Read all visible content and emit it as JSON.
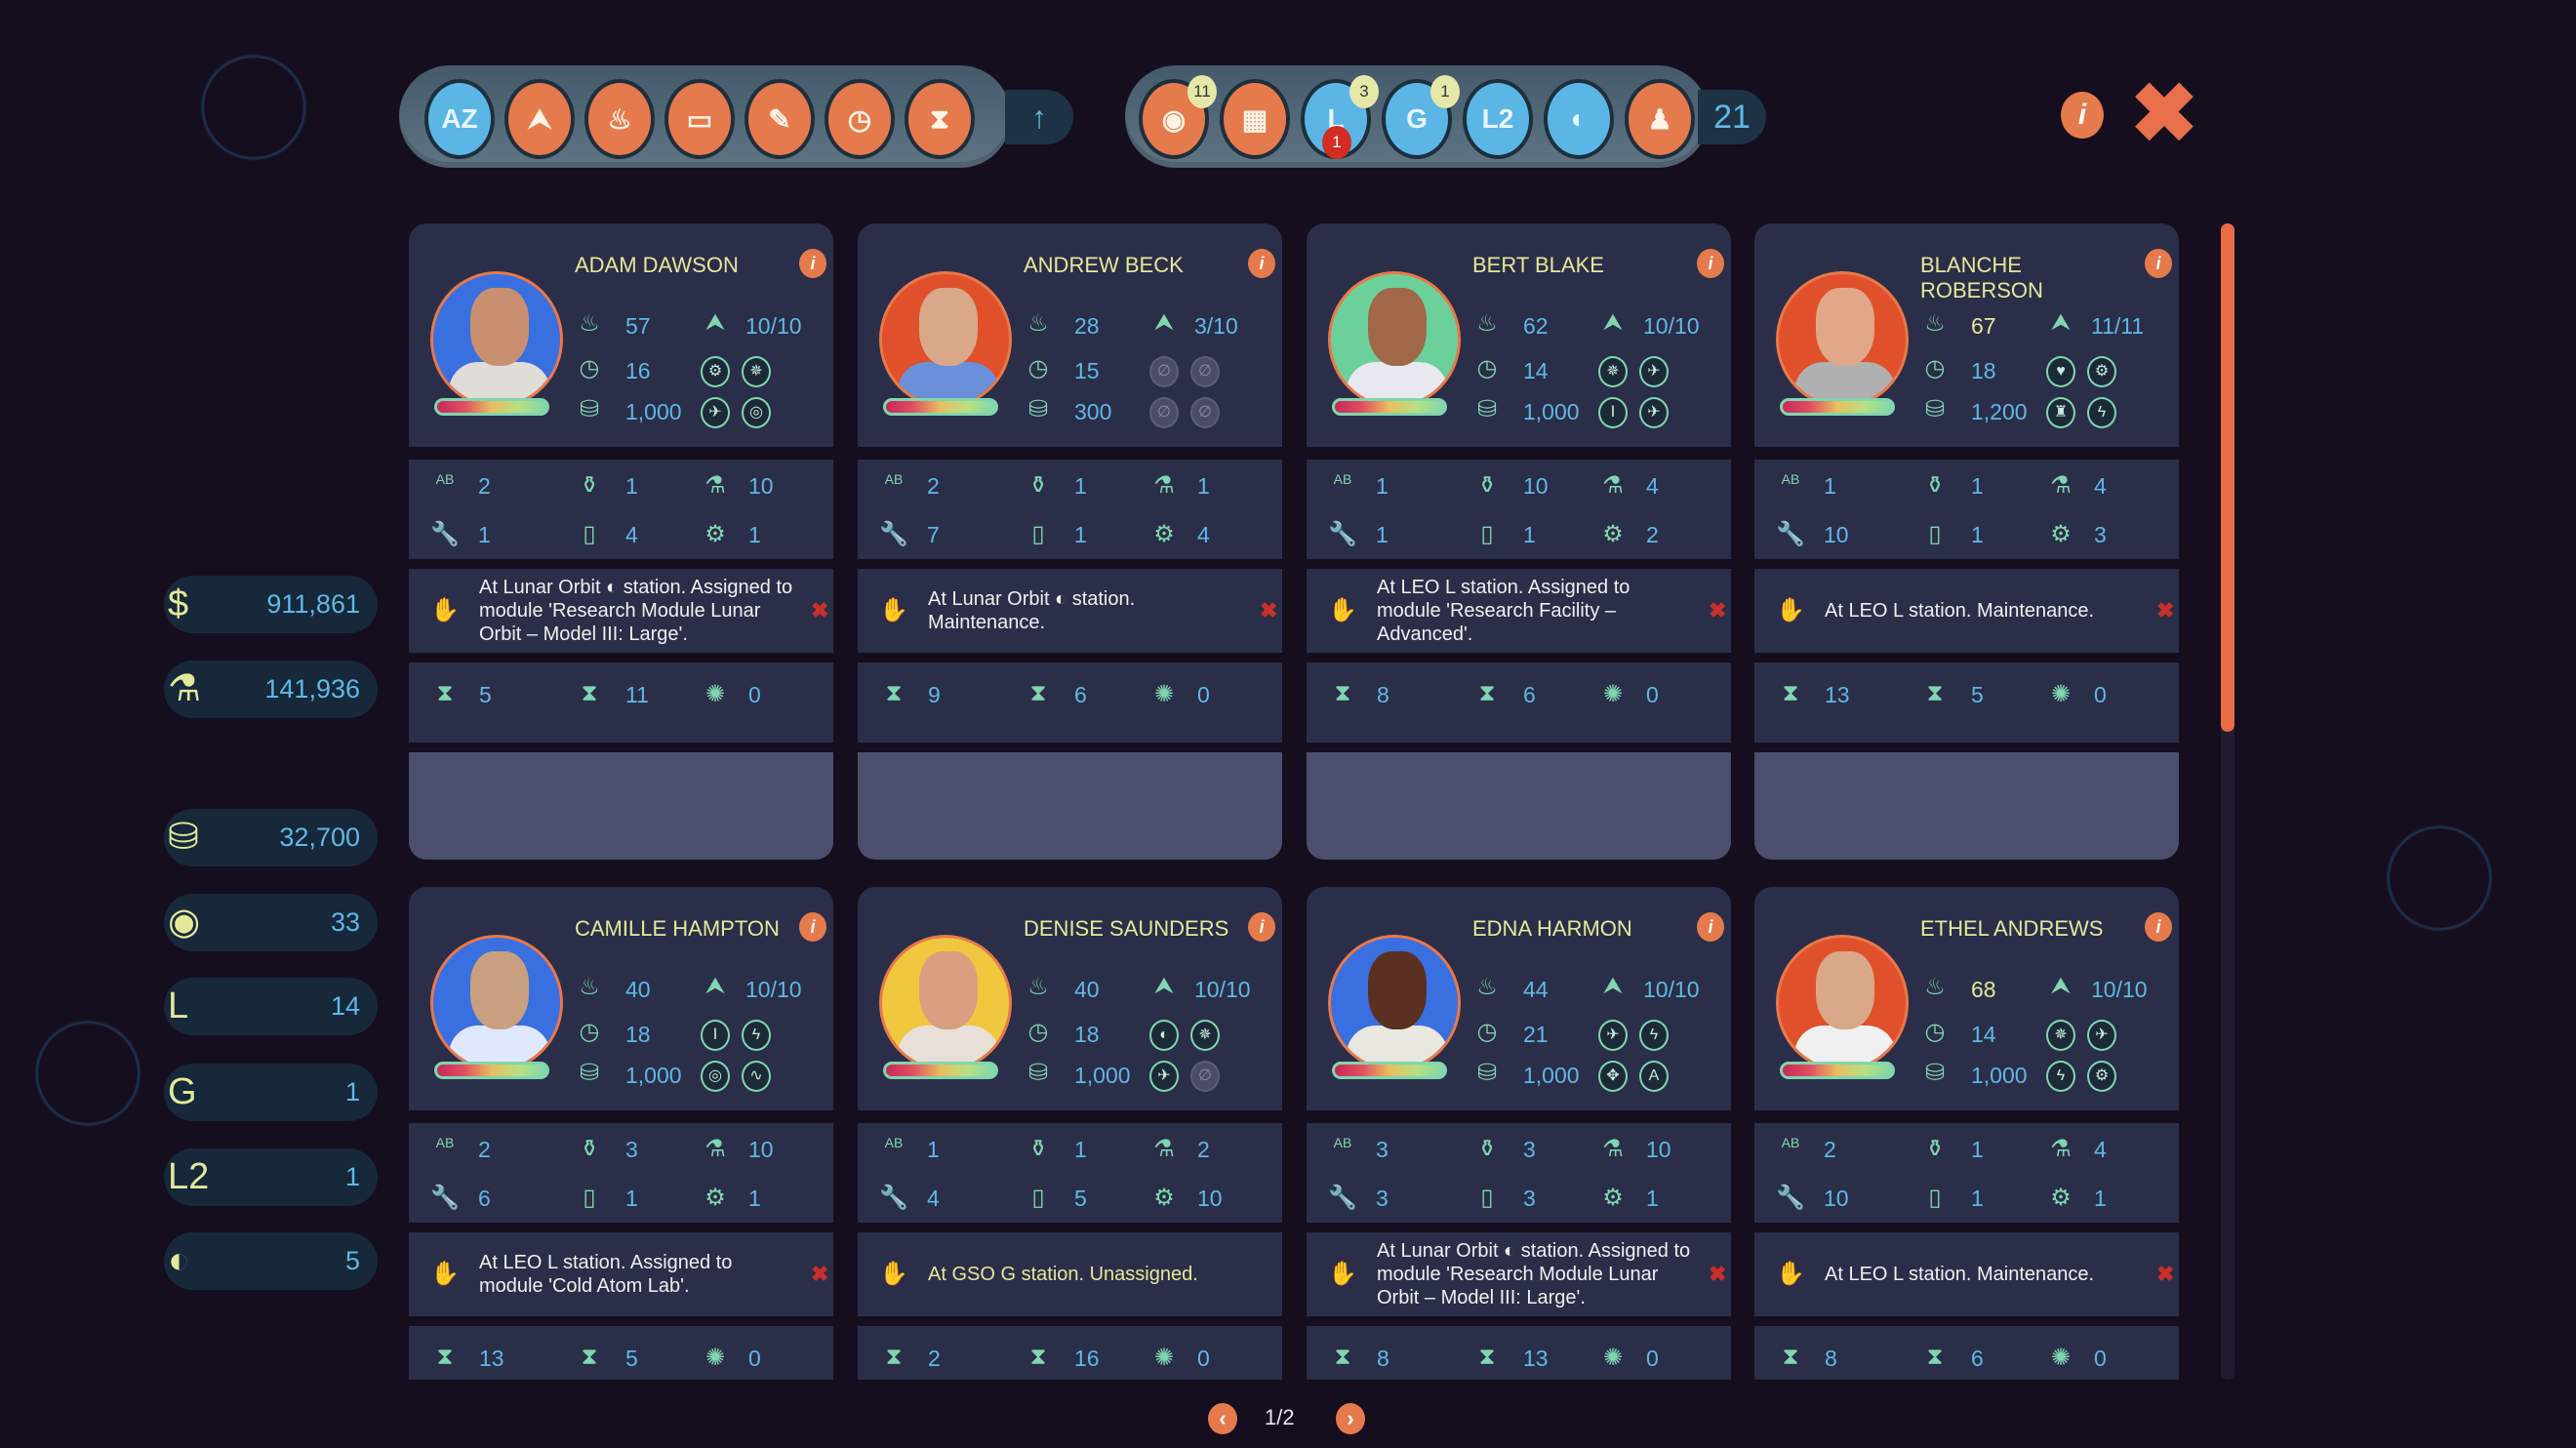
{
  "toolbar": {
    "sort_buttons": [
      {
        "icon": "az-sort-icon",
        "glyph": "AZ",
        "active": true
      },
      {
        "icon": "rank-icon",
        "glyph": "⮝"
      },
      {
        "icon": "age-cake-icon",
        "glyph": "♨"
      },
      {
        "icon": "health-bar-icon",
        "glyph": "▭"
      },
      {
        "icon": "syringe-icon",
        "glyph": "✎"
      },
      {
        "icon": "clock-heart-icon",
        "glyph": "◷"
      },
      {
        "icon": "hourglass-icon",
        "glyph": "⧗"
      }
    ],
    "sort_direction_icon": "arrow-up-icon",
    "filter_buttons": [
      {
        "icon": "earth-astronaut-icon",
        "glyph": "◉",
        "count": "11",
        "color": "orange"
      },
      {
        "icon": "facility-astronaut-icon",
        "glyph": "▦",
        "color": "orange"
      },
      {
        "icon": "leo-station-icon",
        "glyph": "L",
        "count": "3",
        "alert": "1",
        "color": "blue"
      },
      {
        "icon": "gso-station-icon",
        "glyph": "G",
        "count": "1",
        "color": "blue"
      },
      {
        "icon": "l2-station-icon",
        "glyph": "L2",
        "color": "blue"
      },
      {
        "icon": "lunar-station-icon",
        "glyph": "◐",
        "color": "blue"
      },
      {
        "icon": "astronaut-silhouette-icon",
        "glyph": "♟",
        "color": "orange"
      }
    ],
    "total": "21"
  },
  "sidebar": [
    {
      "icon": "dollar-icon",
      "glyph": "$",
      "value": "911,861"
    },
    {
      "icon": "microscope-icon",
      "glyph": "⚗",
      "value": "141,936"
    },
    {
      "icon": "salary-coins-icon",
      "glyph": "⛁",
      "value": "32,700"
    },
    {
      "icon": "earth-astronaut-icon",
      "glyph": "◉",
      "value": "33"
    },
    {
      "icon": "leo-astronauts-icon",
      "glyph": "L",
      "value": "14"
    },
    {
      "icon": "gso-astronauts-icon",
      "glyph": "G",
      "value": "1"
    },
    {
      "icon": "l2-astronauts-icon",
      "glyph": "L2",
      "value": "1"
    },
    {
      "icon": "lunar-astronauts-icon",
      "glyph": "◐",
      "value": "5"
    }
  ],
  "colors": {
    "accent": "#e57a4c",
    "value": "#5fb8e6",
    "name": "#e4e89a",
    "icon": "#7fd6b0",
    "card": "#2b2e48"
  },
  "cards": [
    {
      "name": "ADAM DAWSON",
      "bg": "#3a6fe0",
      "skin": "#c89070",
      "shirt": "#e0dcd8",
      "age": "57",
      "rank": "10/10",
      "recovery": "16",
      "salary": "1,000",
      "badges": [
        "⚙",
        "✵",
        "✈",
        "◎"
      ],
      "skills": [
        "2",
        "1",
        "10",
        "1",
        "4",
        "1"
      ],
      "skill2_icon": "hand-icon",
      "status": "At Lunar Orbit ◐ station. Assigned to module 'Research Module Lunar Orbit – Model III: Large'.",
      "times": [
        "5",
        "11",
        "0"
      ]
    },
    {
      "name": "ANDREW BECK",
      "bg": "#e0502a",
      "skin": "#d8a888",
      "shirt": "#6b8fd8",
      "age": "28",
      "rank": "3/10",
      "recovery": "15",
      "salary": "300",
      "badges": [
        "∅",
        "∅",
        "∅",
        "∅"
      ],
      "badges_empty": true,
      "skills": [
        "2",
        "1",
        "1",
        "7",
        "1",
        "4"
      ],
      "skill2_icon": "mortar-pestle-icon",
      "status": "At Lunar Orbit ◐ station. Maintenance.",
      "times": [
        "9",
        "6",
        "0"
      ]
    },
    {
      "name": "BERT BLAKE",
      "bg": "#6cd09a",
      "skin": "#a06848",
      "shirt": "#e8e8f0",
      "age": "62",
      "rank": "10/10",
      "recovery": "14",
      "salary": "1,000",
      "badges": [
        "✵",
        "✈",
        "Ⅰ",
        "✈"
      ],
      "skills": [
        "1",
        "10",
        "4",
        "1",
        "1",
        "2"
      ],
      "skill2_icon": "bottle-icon",
      "status": "At LEO L station. Assigned to module 'Research Facility – Advanced'.",
      "times": [
        "8",
        "6",
        "0"
      ]
    },
    {
      "name": "BLANCHE ROBERSON",
      "bg": "#e0502a",
      "skin": "#e0a888",
      "shirt": "#b0b0b0",
      "age": "67",
      "age_warn": true,
      "rank": "11/11",
      "recovery": "18",
      "salary": "1,200",
      "badges": [
        "♥",
        "⚙",
        "♜",
        "ϟ"
      ],
      "skills": [
        "1",
        "1",
        "4",
        "10",
        "1",
        "3"
      ],
      "skill2_icon": "mortar-pestle-icon",
      "status": "At LEO L station. Maintenance.",
      "times": [
        "13",
        "5",
        "0"
      ]
    },
    {
      "name": "CAMILLE HAMPTON",
      "bg": "#3a6fe0",
      "skin": "#c8a080",
      "shirt": "#e0e8ff",
      "age": "40",
      "rank": "10/10",
      "recovery": "18",
      "salary": "1,000",
      "badges": [
        "Ⅰ",
        "ϟ",
        "◎",
        "∿"
      ],
      "skills": [
        "2",
        "3",
        "10",
        "6",
        "1",
        "1"
      ],
      "skill2_icon": "mortar-pestle-icon",
      "status": "At LEO L station. Assigned to module 'Cold Atom Lab'.",
      "times": [
        "13",
        "5",
        "0"
      ]
    },
    {
      "name": "DENISE SAUNDERS",
      "bg": "#f0c840",
      "skin": "#d8a080",
      "shirt": "#e8e0d8",
      "age": "40",
      "rank": "10/10",
      "recovery": "18",
      "salary": "1,000",
      "badges": [
        "◐",
        "✵",
        "✈",
        "∅"
      ],
      "skills": [
        "1",
        "1",
        "2",
        "4",
        "5",
        "10"
      ],
      "skill2_icon": "flask-icon",
      "status": "At GSO G station. Unassigned.",
      "status_highlight": true,
      "times": [
        "2",
        "16",
        "0"
      ],
      "no_remove": true
    },
    {
      "name": "EDNA HARMON",
      "bg": "#3a6fe0",
      "skin": "#5a3020",
      "shirt": "#e8e8e0",
      "age": "44",
      "rank": "10/10",
      "recovery": "21",
      "salary": "1,000",
      "badges": [
        "✈",
        "ϟ",
        "✥",
        "A"
      ],
      "skills": [
        "3",
        "3",
        "10",
        "3",
        "3",
        "1"
      ],
      "skill2_icon": "diamond-icon",
      "status": "At Lunar Orbit ◐ station. Assigned to module 'Research Module Lunar Orbit – Model III: Large'.",
      "times": [
        "8",
        "13",
        "0"
      ]
    },
    {
      "name": "ETHEL ANDREWS",
      "bg": "#e0502a",
      "skin": "#d8a888",
      "shirt": "#f0f0f0",
      "age": "68",
      "age_warn": true,
      "rank": "10/10",
      "recovery": "14",
      "salary": "1,000",
      "badges": [
        "✵",
        "✈",
        "ϟ",
        "⚙"
      ],
      "skills": [
        "2",
        "1",
        "4",
        "10",
        "1",
        "1"
      ],
      "skill2_icon": "mortar-pestle-icon",
      "status": "At LEO L station. Maintenance.",
      "times": [
        "8",
        "6",
        "0"
      ]
    }
  ],
  "pagination": {
    "label": "1/2"
  }
}
